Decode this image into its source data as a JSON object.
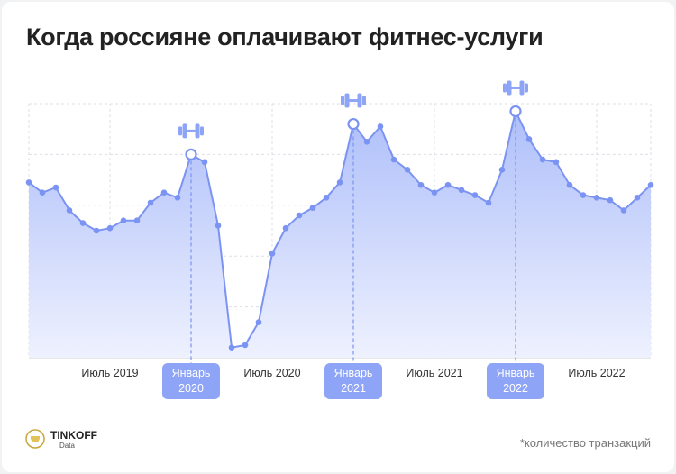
{
  "chart_data": {
    "type": "area",
    "title": "Когда россияне оплачивают фитнес-услуги",
    "note": "*количество транзакций",
    "brand": "TINKOFF",
    "brand_sub": "Data",
    "categories": [
      null,
      null,
      null,
      null,
      null,
      null,
      "Июль 2019",
      null,
      null,
      null,
      null,
      null,
      "Январь 2020",
      null,
      null,
      null,
      null,
      null,
      "Июль 2020",
      null,
      null,
      null,
      null,
      null,
      "Январь 2021",
      null,
      null,
      null,
      null,
      null,
      "Июль 2021",
      null,
      null,
      null,
      null,
      null,
      "Январь 2022",
      null,
      null,
      null,
      null,
      null,
      "Июль 2022",
      null,
      null,
      null,
      null
    ],
    "series": [
      {
        "name": "количество транзакций",
        "color": "#7b93f2",
        "values": [
          69,
          65,
          67,
          58,
          53,
          50,
          51,
          54,
          54,
          61,
          65,
          63,
          80,
          77,
          52,
          4,
          5,
          14,
          41,
          51,
          56,
          59,
          63,
          69,
          92,
          85,
          91,
          78,
          74,
          68,
          65,
          68,
          66,
          64,
          61,
          74,
          97,
          86,
          78,
          77,
          68,
          64,
          63,
          62,
          58,
          63,
          68
        ]
      }
    ],
    "highlight": [
      12,
      24,
      36
    ],
    "ylim": [
      0,
      100
    ],
    "yticks": [
      0,
      20,
      40,
      60,
      80,
      100
    ],
    "grid": true
  }
}
